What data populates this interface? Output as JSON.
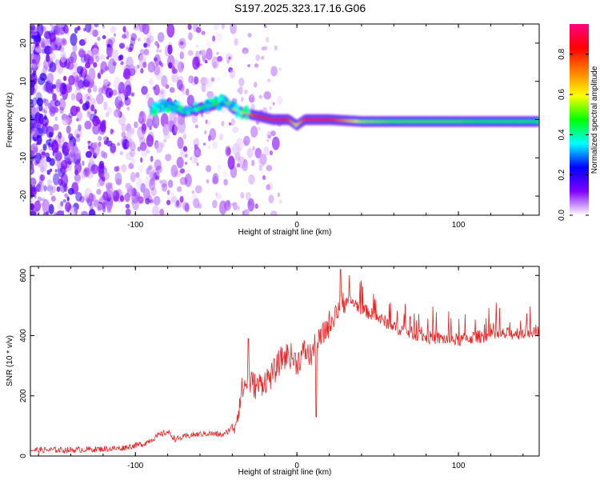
{
  "title": "S197.2025.323.17.16.G06",
  "chart_data": [
    {
      "type": "heatmap",
      "xlabel": "Height of straight line (km)",
      "ylabel": "Frequency (Hz)",
      "xlim": [
        -165,
        150
      ],
      "ylim": [
        -25,
        25
      ],
      "x_ticks": [
        -100,
        0,
        100
      ],
      "x_tick_labels": [
        "-100",
        "0",
        "100"
      ],
      "y_ticks": [
        -20,
        -10,
        0,
        10,
        20
      ],
      "y_tick_labels": [
        "-20",
        "-10",
        "0",
        "10",
        "20"
      ],
      "colorbar": {
        "label": "Normalized spectral amplitude",
        "range": [
          0,
          0.95
        ],
        "ticks": [
          0.0,
          0.2,
          0.4,
          0.6,
          0.8
        ],
        "tick_labels": [
          "0.0",
          "0.2",
          "0.4",
          "0.6",
          "0.8"
        ],
        "colors": [
          "#ffffff",
          "#8000ff",
          "#0000ff",
          "#00ffff",
          "#00ff00",
          "#ffff00",
          "#ff8000",
          "#ff0000",
          "#ff0080"
        ]
      },
      "ridge": {
        "x": [
          -90,
          -80,
          -70,
          -60,
          -50,
          -45,
          -40,
          -35,
          -30,
          -25,
          -20,
          -15,
          -10,
          -5,
          0,
          5,
          10,
          20,
          40,
          60,
          80,
          100,
          120,
          150
        ],
        "y": [
          2.5,
          4,
          2,
          3,
          4,
          5,
          3,
          2,
          1.5,
          1,
          0.5,
          0,
          0,
          0,
          -1.5,
          0,
          0,
          0,
          -0.5,
          -0.5,
          -0.5,
          -0.5,
          -0.5,
          -0.5
        ],
        "amplitude": [
          0.35,
          0.4,
          0.4,
          0.45,
          0.5,
          0.5,
          0.55,
          0.6,
          0.7,
          0.8,
          0.85,
          0.9,
          0.9,
          0.8,
          0.6,
          0.8,
          0.9,
          0.85,
          0.55,
          0.5,
          0.5,
          0.5,
          0.45,
          0.45
        ]
      },
      "noise_region_x": [
        -165,
        -40
      ]
    },
    {
      "type": "line",
      "xlabel": "Height of straight line (km)",
      "ylabel": "SNR (10 * v/v)",
      "xlim": [
        -165,
        150
      ],
      "ylim": [
        0,
        630
      ],
      "x_ticks": [
        -100,
        0,
        100
      ],
      "x_tick_labels": [
        "-100",
        "0",
        "100"
      ],
      "y_ticks": [
        0,
        200,
        400,
        600
      ],
      "y_tick_labels": [
        "0",
        "200",
        "400",
        "600"
      ],
      "color": "#ee2222",
      "series": [
        {
          "name": "SNR",
          "x": [
            -165,
            -140,
            -110,
            -95,
            -85,
            -80,
            -75,
            -65,
            -55,
            -45,
            -38,
            -34,
            -30,
            -25,
            -20,
            -15,
            -10,
            -5,
            0,
            5,
            8,
            11,
            15,
            20,
            25,
            30,
            35,
            40,
            50,
            60,
            70,
            80,
            90,
            100,
            110,
            120,
            130,
            140,
            150
          ],
          "y": [
            20,
            20,
            25,
            40,
            70,
            80,
            55,
            70,
            75,
            70,
            110,
            220,
            250,
            230,
            250,
            270,
            320,
            340,
            310,
            350,
            330,
            360,
            390,
            440,
            490,
            520,
            510,
            490,
            460,
            430,
            410,
            395,
            390,
            385,
            395,
            400,
            405,
            410,
            420
          ]
        }
      ],
      "spikes": [
        {
          "x": -30,
          "y": 390
        },
        {
          "x": 12,
          "y": 130
        },
        {
          "x": 27,
          "y": 620
        }
      ]
    }
  ]
}
